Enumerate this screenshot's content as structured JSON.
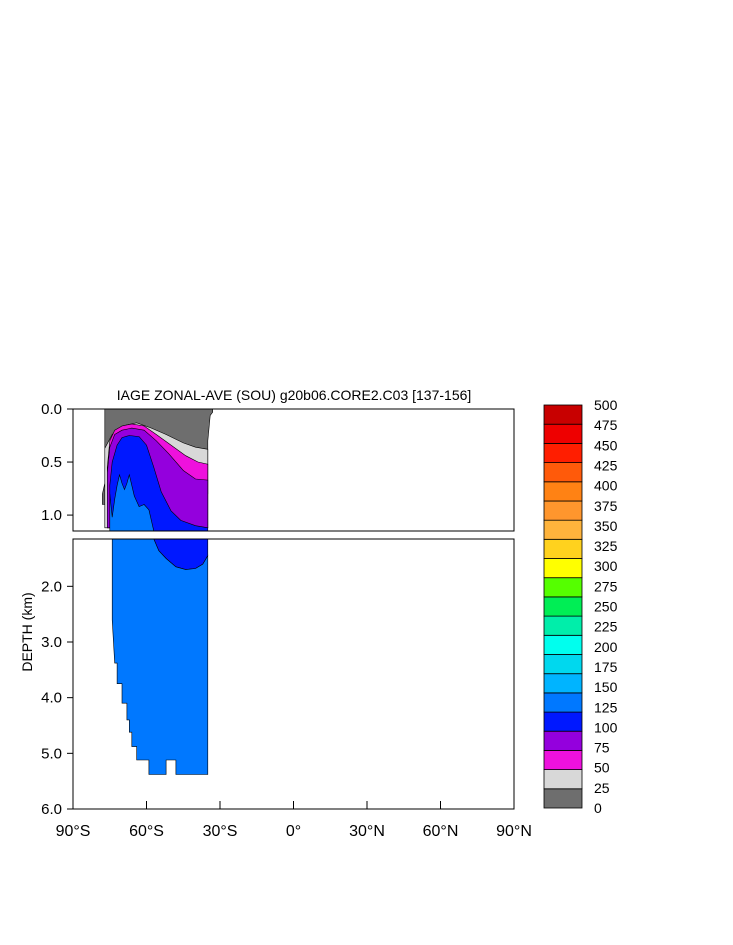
{
  "chart_data": {
    "type": "heatmap",
    "title": "IAGE ZONAL-AVE (SOU) g20b06.CORE2.C03 [137-156]",
    "ylabel": "DEPTH (km)",
    "xlabel": "",
    "x_ticks": [
      {
        "value": -90,
        "label": "90°S"
      },
      {
        "value": -60,
        "label": "60°S"
      },
      {
        "value": -30,
        "label": "30°S"
      },
      {
        "value": 0,
        "label": "0°"
      },
      {
        "value": 30,
        "label": "30°N"
      },
      {
        "value": 60,
        "label": "60°N"
      },
      {
        "value": 90,
        "label": "90°N"
      }
    ],
    "xlim": [
      -90,
      90
    ],
    "upper_panel": {
      "ylim": [
        0,
        1.15
      ],
      "y_ticks": [
        {
          "value": 0,
          "label": "0.0"
        },
        {
          "value": 0.5,
          "label": "0.5"
        },
        {
          "value": 1.0,
          "label": "1.0"
        }
      ]
    },
    "lower_panel": {
      "ylim": [
        1.15,
        6.0
      ],
      "y_ticks": [
        {
          "value": 2,
          "label": "2.0"
        },
        {
          "value": 3,
          "label": "3.0"
        },
        {
          "value": 4,
          "label": "4.0"
        },
        {
          "value": 5,
          "label": "5.0"
        },
        {
          "value": 6,
          "label": "6.0"
        }
      ]
    },
    "grid": false,
    "colorbar": {
      "placement": "right",
      "levels": [
        "0",
        "25",
        "50",
        "75",
        "100",
        "125",
        "150",
        "175",
        "200",
        "225",
        "250",
        "275",
        "300",
        "325",
        "350",
        "375",
        "400",
        "425",
        "450",
        "475",
        "500"
      ],
      "colors": [
        "#6e6e6e",
        "#d8d8d8",
        "#ee11dd",
        "#9400dd",
        "#0018ff",
        "#0078ff",
        "#00b4ff",
        "#00d8ee",
        "#00ffee",
        "#00eeaa",
        "#00ee55",
        "#55ff00",
        "#ffff00",
        "#ffd21e",
        "#ffb43c",
        "#ff962d",
        "#ff8214",
        "#ff5a0a",
        "#ff1e00",
        "#ee0000",
        "#c80000"
      ]
    },
    "contours": [
      {
        "level_range": "0-25",
        "color": "#6e6e6e",
        "upper": [
          [
            -77,
            0
          ],
          [
            -33,
            0
          ],
          [
            -33,
            0.03
          ],
          [
            -34,
            0.06
          ],
          [
            -35,
            0.3
          ],
          [
            -35,
            0.8
          ],
          [
            -36,
            0.9
          ],
          [
            -78,
            0.9
          ],
          [
            -78,
            0.8
          ],
          [
            -77,
            0.7
          ]
        ]
      },
      {
        "level_range": "25-50",
        "color": "#d8d8d8",
        "upper": [
          [
            -77,
            0.37
          ],
          [
            -74,
            0.24
          ],
          [
            -70,
            0.16
          ],
          [
            -64,
            0.13
          ],
          [
            -58,
            0.18
          ],
          [
            -52,
            0.24
          ],
          [
            -45,
            0.32
          ],
          [
            -40,
            0.36
          ],
          [
            -35,
            0.38
          ],
          [
            -35,
            1.12
          ],
          [
            -77,
            1.12
          ]
        ]
      },
      {
        "level_range": "50-75",
        "color": "#ee11dd",
        "upper": [
          [
            -76,
            0.55
          ],
          [
            -75,
            0.3
          ],
          [
            -73,
            0.2
          ],
          [
            -70,
            0.16
          ],
          [
            -66,
            0.14
          ],
          [
            -61,
            0.16
          ],
          [
            -56,
            0.24
          ],
          [
            -50,
            0.34
          ],
          [
            -44,
            0.44
          ],
          [
            -39,
            0.5
          ],
          [
            -35,
            0.52
          ],
          [
            -35,
            1.12
          ],
          [
            -76,
            1.12
          ]
        ]
      },
      {
        "level_range": "75-100",
        "color": "#9400dd",
        "upper": [
          [
            -76,
            0.6
          ],
          [
            -75,
            0.36
          ],
          [
            -73,
            0.24
          ],
          [
            -70,
            0.2
          ],
          [
            -66,
            0.18
          ],
          [
            -61,
            0.2
          ],
          [
            -56,
            0.3
          ],
          [
            -51,
            0.42
          ],
          [
            -45,
            0.58
          ],
          [
            -40,
            0.66
          ],
          [
            -35,
            0.67
          ],
          [
            -35,
            1.12
          ],
          [
            -76,
            1.12
          ]
        ]
      },
      {
        "level_range": "100-125",
        "color": "#0018ff",
        "upper": [
          [
            -75,
            0.72
          ],
          [
            -74,
            0.5
          ],
          [
            -72,
            0.34
          ],
          [
            -70,
            0.27
          ],
          [
            -67,
            0.25
          ],
          [
            -63,
            0.26
          ],
          [
            -60,
            0.34
          ],
          [
            -57,
            0.55
          ],
          [
            -54,
            0.78
          ],
          [
            -50,
            0.96
          ],
          [
            -46,
            1.05
          ],
          [
            -40,
            1.1
          ],
          [
            -35,
            1.12
          ],
          [
            -35,
            1.15
          ],
          [
            -75,
            1.15
          ]
        ],
        "lower": [
          [
            -60,
            1.15
          ],
          [
            -35,
            1.15
          ],
          [
            -35,
            1.45
          ],
          [
            -37,
            1.6
          ],
          [
            -40,
            1.68
          ],
          [
            -44,
            1.7
          ],
          [
            -48,
            1.65
          ],
          [
            -52,
            1.5
          ],
          [
            -55,
            1.36
          ],
          [
            -57,
            1.15
          ]
        ]
      },
      {
        "level_range": "125-150",
        "color": "#0078ff",
        "upper": [
          [
            -75,
            1.15
          ],
          [
            -75,
            0.8
          ],
          [
            -74,
            1.02
          ],
          [
            -73,
            0.85
          ],
          [
            -72,
            0.72
          ],
          [
            -71,
            0.62
          ],
          [
            -70,
            0.7
          ],
          [
            -69,
            0.76
          ],
          [
            -68,
            0.7
          ],
          [
            -67,
            0.62
          ],
          [
            -65,
            0.82
          ],
          [
            -63,
            0.92
          ],
          [
            -61,
            0.9
          ],
          [
            -59,
            0.95
          ],
          [
            -57,
            1.15
          ]
        ],
        "lower": [
          [
            -75,
            1.15
          ],
          [
            -60,
            1.15
          ],
          [
            -57,
            1.15
          ],
          [
            -55,
            1.36
          ],
          [
            -52,
            1.5
          ],
          [
            -48,
            1.65
          ],
          [
            -44,
            1.7
          ],
          [
            -40,
            1.68
          ],
          [
            -37,
            1.6
          ],
          [
            -35,
            1.45
          ],
          [
            -35,
            5.38
          ],
          [
            -48,
            5.38
          ],
          [
            -48,
            5.12
          ],
          [
            -52,
            5.12
          ],
          [
            -52,
            5.38
          ],
          [
            -59,
            5.38
          ],
          [
            -59,
            5.12
          ],
          [
            -64,
            5.12
          ],
          [
            -64,
            4.88
          ],
          [
            -66,
            4.88
          ],
          [
            -66,
            4.62
          ],
          [
            -67,
            4.62
          ],
          [
            -67,
            4.4
          ],
          [
            -68,
            4.4
          ],
          [
            -68,
            4.1
          ],
          [
            -70,
            4.1
          ],
          [
            -70,
            3.75
          ],
          [
            -72,
            3.75
          ],
          [
            -72,
            3.38
          ],
          [
            -73,
            3.38
          ],
          [
            -74,
            2.6
          ],
          [
            -74,
            1.15
          ]
        ]
      }
    ]
  }
}
